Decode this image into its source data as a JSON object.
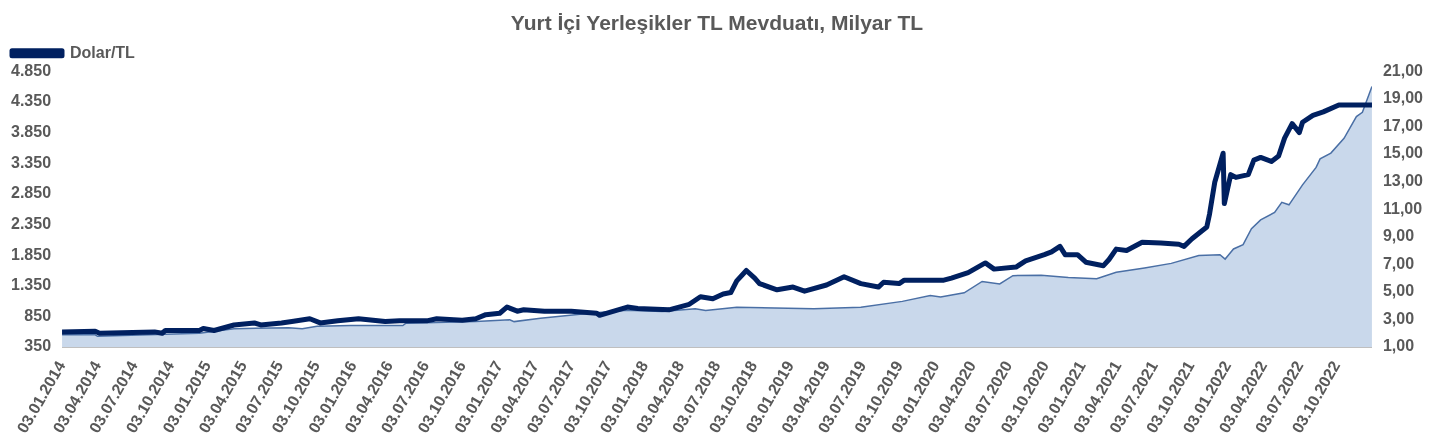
{
  "chart_data": {
    "type": "area",
    "title": "Yurt İçi Yerleşikler TL Mevduatı, Milyar TL",
    "legend": "top left",
    "grid": false,
    "xlim": [
      "2014-01-03",
      "2022-12-30"
    ],
    "xticks": [
      {
        "value": "2014-01-03",
        "label": "03.01.2014"
      },
      {
        "value": "2014-04-03",
        "label": "03.04.2014"
      },
      {
        "value": "2014-07-03",
        "label": "03.07.2014"
      },
      {
        "value": "2014-10-03",
        "label": "03.10.2014"
      },
      {
        "value": "2015-01-03",
        "label": "03.01.2015"
      },
      {
        "value": "2015-04-03",
        "label": "03.04.2015"
      },
      {
        "value": "2015-07-03",
        "label": "03.07.2015"
      },
      {
        "value": "2015-10-03",
        "label": "03.10.2015"
      },
      {
        "value": "2016-01-03",
        "label": "03.01.2016"
      },
      {
        "value": "2016-04-03",
        "label": "03.04.2016"
      },
      {
        "value": "2016-07-03",
        "label": "03.07.2016"
      },
      {
        "value": "2016-10-03",
        "label": "03.10.2016"
      },
      {
        "value": "2017-01-03",
        "label": "03.01.2017"
      },
      {
        "value": "2017-04-03",
        "label": "03.04.2017"
      },
      {
        "value": "2017-07-03",
        "label": "03.07.2017"
      },
      {
        "value": "2017-10-03",
        "label": "03.10.2017"
      },
      {
        "value": "2018-01-03",
        "label": "03.01.2018"
      },
      {
        "value": "2018-04-03",
        "label": "03.04.2018"
      },
      {
        "value": "2018-07-03",
        "label": "03.07.2018"
      },
      {
        "value": "2018-10-03",
        "label": "03.10.2018"
      },
      {
        "value": "2019-01-03",
        "label": "03.01.2019"
      },
      {
        "value": "2019-04-03",
        "label": "03.04.2019"
      },
      {
        "value": "2019-07-03",
        "label": "03.07.2019"
      },
      {
        "value": "2019-10-03",
        "label": "03.10.2019"
      },
      {
        "value": "2020-01-03",
        "label": "03.01.2020"
      },
      {
        "value": "2020-04-03",
        "label": "03.04.2020"
      },
      {
        "value": "2020-07-03",
        "label": "03.07.2020"
      },
      {
        "value": "2020-10-03",
        "label": "03.10.2020"
      },
      {
        "value": "2021-01-03",
        "label": "03.01.2021"
      },
      {
        "value": "2021-04-03",
        "label": "03.04.2021"
      },
      {
        "value": "2021-07-03",
        "label": "03.07.2021"
      },
      {
        "value": "2021-10-03",
        "label": "03.10.2021"
      },
      {
        "value": "2022-01-03",
        "label": "03.01.2022"
      },
      {
        "value": "2022-04-03",
        "label": "03.04.2022"
      },
      {
        "value": "2022-07-03",
        "label": "03.07.2022"
      },
      {
        "value": "2022-10-03",
        "label": "03.10.2022"
      }
    ],
    "ylim": [
      350,
      4850
    ],
    "yticks": [
      {
        "value": 350,
        "label": "350"
      },
      {
        "value": 850,
        "label": "850"
      },
      {
        "value": 1350,
        "label": "1.350"
      },
      {
        "value": 1850,
        "label": "1.850"
      },
      {
        "value": 2350,
        "label": "2.350"
      },
      {
        "value": 2850,
        "label": "2.850"
      },
      {
        "value": 3350,
        "label": "3.350"
      },
      {
        "value": 3850,
        "label": "3.850"
      },
      {
        "value": 4350,
        "label": "4.350"
      },
      {
        "value": 4850,
        "label": "4.850"
      }
    ],
    "y2lim": [
      1,
      21
    ],
    "y2ticks": [
      {
        "value": 1,
        "label": "1,00"
      },
      {
        "value": 3,
        "label": "3,00"
      },
      {
        "value": 5,
        "label": "5,00"
      },
      {
        "value": 7,
        "label": "7,00"
      },
      {
        "value": 9,
        "label": "9,00"
      },
      {
        "value": 11,
        "label": "11,00"
      },
      {
        "value": 13,
        "label": "13,00"
      },
      {
        "value": 15,
        "label": "15,00"
      },
      {
        "value": 17,
        "label": "17,00"
      },
      {
        "value": 19,
        "label": "19,00"
      },
      {
        "value": 21,
        "label": "21,00"
      }
    ],
    "series": [
      {
        "color": "#4a6fa5",
        "x": [
          "2014-01-03",
          "2014-03-27",
          "2014-04-02",
          "2014-12-13",
          "2015-03-10",
          "2015-07-25",
          "2015-08-28",
          "2015-10-04",
          "2015-12-28",
          "2016-05-06",
          "2016-05-14",
          "2016-11-05",
          "2017-01-29",
          "2017-02-09",
          "2017-04-16",
          "2017-08-24",
          "2017-11-20",
          "2018-02-15",
          "2018-05-09",
          "2018-06-04",
          "2018-08-21",
          "2019-03-02",
          "2019-06-28",
          "2019-10-10",
          "2019-12-19",
          "2020-01-14",
          "2020-03-13",
          "2020-04-27",
          "2020-06-10",
          "2020-07-13",
          "2020-09-22",
          "2020-11-29",
          "2021-02-08",
          "2021-03-29",
          "2021-06-08",
          "2021-08-14",
          "2021-10-22",
          "2021-12-14",
          "2021-12-27",
          "2022-01-17",
          "2022-02-10",
          "2022-03-03",
          "2022-03-26",
          "2022-04-30",
          "2022-05-18",
          "2022-06-05",
          "2022-07-09",
          "2022-08-12",
          "2022-08-22",
          "2022-09-18",
          "2022-10-21",
          "2022-11-21",
          "2022-12-06",
          "2022-12-30"
        ],
        "values": [
          550,
          550,
          525,
          575,
          650,
          665,
          650,
          690,
          700,
          700,
          740,
          765,
          795,
          765,
          820,
          905,
          950,
          930,
          975,
          945,
          1000,
          975,
          1000,
          1095,
          1190,
          1165,
          1235,
          1420,
          1380,
          1515,
          1520,
          1485,
          1465,
          1570,
          1640,
          1715,
          1845,
          1855,
          1785,
          1950,
          2020,
          2280,
          2425,
          2545,
          2710,
          2670,
          2995,
          3280,
          3420,
          3515,
          3755,
          4110,
          4180,
          4600
        ]
      },
      {
        "type": "line",
        "name": "Dolar/TL",
        "color": "#002060",
        "axis": "y2",
        "x": [
          "2014-01-03",
          "2014-03-27",
          "2014-04-07",
          "2014-08-23",
          "2014-09-11",
          "2014-09-19",
          "2014-12-13",
          "2014-12-23",
          "2015-01-19",
          "2015-03-10",
          "2015-04-30",
          "2015-05-16",
          "2015-07-07",
          "2015-08-02",
          "2015-09-16",
          "2015-10-12",
          "2015-11-25",
          "2016-01-16",
          "2016-03-23",
          "2016-04-28",
          "2016-07-05",
          "2016-07-30",
          "2016-10-02",
          "2016-11-05",
          "2016-11-30",
          "2017-01-04",
          "2017-01-22",
          "2017-02-17",
          "2017-03-05",
          "2017-04-26",
          "2017-07-02",
          "2017-09-04",
          "2017-09-11",
          "2017-11-20",
          "2017-12-16",
          "2018-03-04",
          "2018-04-24",
          "2018-05-22",
          "2018-06-22",
          "2018-07-18",
          "2018-08-06",
          "2018-08-21",
          "2018-09-14",
          "2018-10-05",
          "2018-10-17",
          "2018-11-30",
          "2019-01-09",
          "2019-02-07",
          "2019-04-03",
          "2019-05-17",
          "2019-06-28",
          "2019-08-11",
          "2019-08-24",
          "2019-10-02",
          "2019-10-15",
          "2019-12-19",
          "2020-01-22",
          "2020-02-10",
          "2020-03-23",
          "2020-05-05",
          "2020-05-27",
          "2020-07-21",
          "2020-08-14",
          "2020-09-30",
          "2020-10-18",
          "2020-11-08",
          "2020-11-21",
          "2020-12-22",
          "2021-01-12",
          "2021-02-25",
          "2021-03-11",
          "2021-03-29",
          "2021-04-24",
          "2021-06-02",
          "2021-07-19",
          "2021-09-02",
          "2021-09-15",
          "2021-10-05",
          "2021-11-11",
          "2021-11-18",
          "2021-12-01",
          "2021-12-22",
          "2021-12-25",
          "2022-01-10",
          "2022-01-23",
          "2022-02-23",
          "2022-03-09",
          "2022-03-26",
          "2022-04-22",
          "2022-05-10",
          "2022-05-25",
          "2022-06-13",
          "2022-07-01",
          "2022-07-09",
          "2022-08-04",
          "2022-08-30",
          "2022-10-08",
          "2022-12-30"
        ],
        "values": [
          2.1,
          2.15,
          2.0,
          2.1,
          2.0,
          2.2,
          2.2,
          2.35,
          2.2,
          2.6,
          2.75,
          2.6,
          2.75,
          2.85,
          3.05,
          2.75,
          2.9,
          3.05,
          2.85,
          2.9,
          2.9,
          3.05,
          2.95,
          3.05,
          3.35,
          3.45,
          3.9,
          3.6,
          3.7,
          3.6,
          3.6,
          3.45,
          3.3,
          3.9,
          3.8,
          3.7,
          4.1,
          4.65,
          4.5,
          4.85,
          4.95,
          5.8,
          6.55,
          6.0,
          5.6,
          5.15,
          5.35,
          5.05,
          5.5,
          6.1,
          5.6,
          5.35,
          5.7,
          5.6,
          5.85,
          5.85,
          5.85,
          6.0,
          6.4,
          7.1,
          6.65,
          6.8,
          7.25,
          7.7,
          7.9,
          8.3,
          7.7,
          7.7,
          7.15,
          6.9,
          7.35,
          8.1,
          8.0,
          8.6,
          8.55,
          8.45,
          8.3,
          8.85,
          9.7,
          10.65,
          12.95,
          15.05,
          11.4,
          13.5,
          13.3,
          13.5,
          14.55,
          14.75,
          14.45,
          14.85,
          16.15,
          17.2,
          16.55,
          17.3,
          17.8,
          18.05,
          18.55,
          18.55
        ]
      }
    ]
  }
}
